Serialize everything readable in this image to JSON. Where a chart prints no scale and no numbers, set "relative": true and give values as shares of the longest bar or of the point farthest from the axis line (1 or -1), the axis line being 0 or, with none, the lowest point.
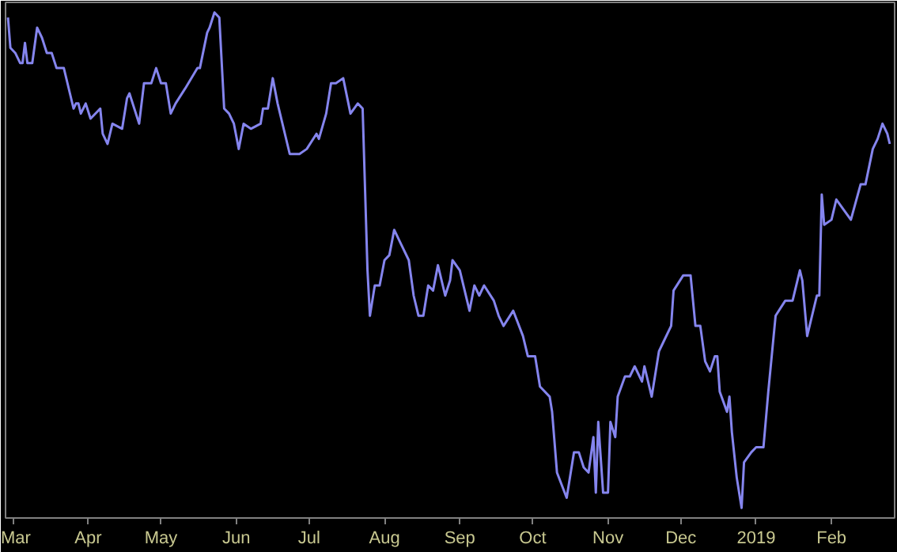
{
  "chart_data": {
    "type": "line",
    "relative": true,
    "x": [
      "2018-02-27",
      "2018-02-28",
      "2018-03-02",
      "2018-03-04",
      "2018-03-05",
      "2018-03-06",
      "2018-03-07",
      "2018-03-09",
      "2018-03-11",
      "2018-03-13",
      "2018-03-15",
      "2018-03-17",
      "2018-03-19",
      "2018-03-22",
      "2018-03-26",
      "2018-03-27",
      "2018-03-28",
      "2018-03-29",
      "2018-03-31",
      "2018-04-02",
      "2018-04-06",
      "2018-04-07",
      "2018-04-09",
      "2018-04-11",
      "2018-04-15",
      "2018-04-17",
      "2018-04-18",
      "2018-04-22",
      "2018-04-24",
      "2018-04-27",
      "2018-04-29",
      "2018-05-01",
      "2018-05-03",
      "2018-05-05",
      "2018-05-07",
      "2018-05-11",
      "2018-05-16",
      "2018-05-17",
      "2018-05-20",
      "2018-05-21",
      "2018-05-23",
      "2018-05-25",
      "2018-05-27",
      "2018-05-29",
      "2018-05-31",
      "2018-06-02",
      "2018-06-04",
      "2018-06-07",
      "2018-06-11",
      "2018-06-12",
      "2018-06-14",
      "2018-06-16",
      "2018-06-18",
      "2018-06-23",
      "2018-06-27",
      "2018-06-30",
      "2018-07-04",
      "2018-07-05",
      "2018-07-08",
      "2018-07-10",
      "2018-07-12",
      "2018-07-15",
      "2018-07-18",
      "2018-07-21",
      "2018-07-23",
      "2018-07-25",
      "2018-07-26",
      "2018-07-28",
      "2018-07-30",
      "2018-08-01",
      "2018-08-03",
      "2018-08-05",
      "2018-08-08",
      "2018-08-11",
      "2018-08-13",
      "2018-08-15",
      "2018-08-17",
      "2018-08-19",
      "2018-08-21",
      "2018-08-23",
      "2018-08-26",
      "2018-08-28",
      "2018-08-29",
      "2018-09-01",
      "2018-09-05",
      "2018-09-07",
      "2018-09-09",
      "2018-09-11",
      "2018-09-15",
      "2018-09-17",
      "2018-09-19",
      "2018-09-23",
      "2018-09-27",
      "2018-09-29",
      "2018-10-02",
      "2018-10-04",
      "2018-10-08",
      "2018-10-09",
      "2018-10-11",
      "2018-10-15",
      "2018-10-18",
      "2018-10-20",
      "2018-10-22",
      "2018-10-24",
      "2018-10-26",
      "2018-10-27",
      "2018-10-28",
      "2018-10-30",
      "2018-11-01",
      "2018-11-02",
      "2018-11-04",
      "2018-11-05",
      "2018-11-08",
      "2018-11-10",
      "2018-11-12",
      "2018-11-15",
      "2018-11-16",
      "2018-11-19",
      "2018-11-22",
      "2018-11-24",
      "2018-11-27",
      "2018-11-28",
      "2018-12-02",
      "2018-12-05",
      "2018-12-07",
      "2018-12-09",
      "2018-12-11",
      "2018-12-13",
      "2018-12-15",
      "2018-12-16",
      "2018-12-17",
      "2018-12-20",
      "2018-12-21",
      "2018-12-22",
      "2018-12-24",
      "2018-12-26",
      "2018-12-27",
      "2018-12-30",
      "2019-01-01",
      "2019-01-04",
      "2019-01-06",
      "2019-01-09",
      "2019-01-13",
      "2019-01-16",
      "2019-01-19",
      "2019-01-20",
      "2019-01-22",
      "2019-01-26",
      "2019-01-27",
      "2019-01-28",
      "2019-01-29",
      "2019-02-01",
      "2019-02-03",
      "2019-02-06",
      "2019-02-09",
      "2019-02-13",
      "2019-02-15",
      "2019-02-18",
      "2019-02-20",
      "2019-02-22",
      "2019-02-24",
      "2019-02-25"
    ],
    "series": [
      {
        "color": "#8585ee",
        "values": [
          0.99,
          0.93,
          0.92,
          0.9,
          0.9,
          0.94,
          0.9,
          0.9,
          0.97,
          0.95,
          0.92,
          0.92,
          0.89,
          0.89,
          0.81,
          0.82,
          0.82,
          0.8,
          0.82,
          0.79,
          0.81,
          0.76,
          0.74,
          0.78,
          0.77,
          0.83,
          0.84,
          0.78,
          0.86,
          0.86,
          0.89,
          0.86,
          0.86,
          0.8,
          0.82,
          0.85,
          0.89,
          0.89,
          0.96,
          0.97,
          1,
          0.99,
          0.81,
          0.8,
          0.78,
          0.73,
          0.78,
          0.77,
          0.78,
          0.81,
          0.81,
          0.87,
          0.82,
          0.72,
          0.72,
          0.73,
          0.76,
          0.75,
          0.8,
          0.86,
          0.86,
          0.87,
          0.8,
          0.82,
          0.81,
          0.49,
          0.4,
          0.46,
          0.46,
          0.51,
          0.52,
          0.57,
          0.54,
          0.51,
          0.44,
          0.4,
          0.4,
          0.46,
          0.45,
          0.5,
          0.44,
          0.47,
          0.51,
          0.49,
          0.41,
          0.46,
          0.44,
          0.46,
          0.43,
          0.4,
          0.38,
          0.41,
          0.36,
          0.32,
          0.32,
          0.26,
          0.24,
          0.21,
          0.09,
          0.04,
          0.13,
          0.13,
          0.1,
          0.09,
          0.16,
          0.05,
          0.19,
          0.05,
          0.05,
          0.19,
          0.16,
          0.24,
          0.28,
          0.28,
          0.3,
          0.27,
          0.3,
          0.24,
          0.33,
          0.35,
          0.38,
          0.45,
          0.48,
          0.48,
          0.38,
          0.38,
          0.31,
          0.29,
          0.32,
          0.32,
          0.25,
          0.21,
          0.24,
          0.17,
          0.08,
          0.02,
          0.11,
          0.13,
          0.14,
          0.14,
          0.25,
          0.4,
          0.43,
          0.43,
          0.49,
          0.47,
          0.36,
          0.44,
          0.44,
          0.64,
          0.58,
          0.59,
          0.63,
          0.61,
          0.59,
          0.66,
          0.66,
          0.73,
          0.75,
          0.78,
          0.76,
          0.74
        ]
      }
    ],
    "xlim": [
      "2018-02-26",
      "2019-02-27"
    ],
    "xticks": [
      {
        "value": "2018-03-01",
        "label": "Mar"
      },
      {
        "value": "2018-04-01",
        "label": "Apr"
      },
      {
        "value": "2018-05-01",
        "label": "May"
      },
      {
        "value": "2018-06-01",
        "label": "Jun"
      },
      {
        "value": "2018-07-01",
        "label": "Jul"
      },
      {
        "value": "2018-08-01",
        "label": "Aug"
      },
      {
        "value": "2018-09-01",
        "label": "Sep"
      },
      {
        "value": "2018-10-01",
        "label": "Oct"
      },
      {
        "value": "2018-11-01",
        "label": "Nov"
      },
      {
        "value": "2018-12-01",
        "label": "Dec"
      },
      {
        "value": "2019-01-01",
        "label": "2019"
      },
      {
        "value": "2019-02-01",
        "label": "Feb"
      }
    ],
    "line_style": "solid"
  }
}
